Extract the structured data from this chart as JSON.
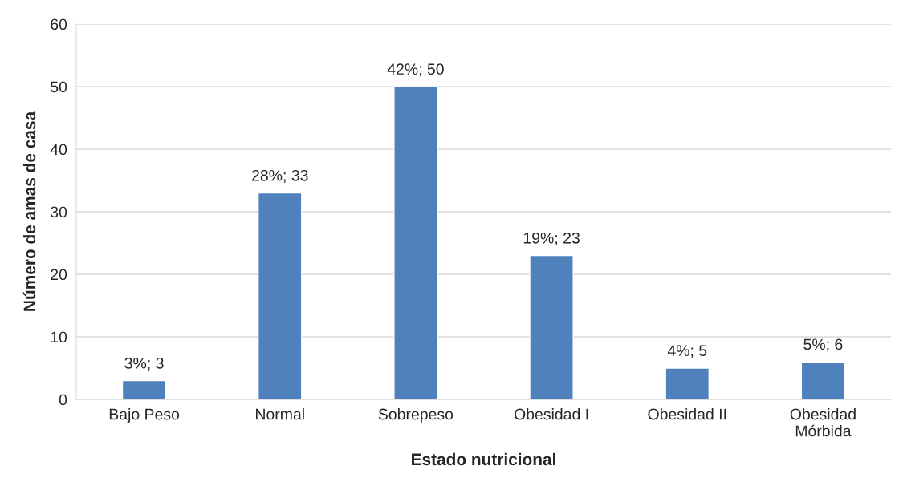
{
  "chart_data": {
    "type": "bar",
    "xlabel": "Estado nutricional",
    "ylabel": "Número de amas de casa",
    "categories": [
      "Bajo Peso",
      "Normal",
      "Sobrepeso",
      "Obesidad I",
      "Obesidad II",
      "Obesidad\nMórbida"
    ],
    "values": [
      3,
      33,
      50,
      23,
      5,
      6
    ],
    "value_labels": [
      "3%; 3",
      "28%; 33",
      "42%; 50",
      "19%; 23",
      "4%; 5",
      "5%; 6"
    ],
    "color": "#4f81bd",
    "ylim": [
      0,
      60
    ],
    "yticks": [
      0,
      10,
      20,
      30,
      40,
      50,
      60
    ],
    "grid": "y",
    "legend": false
  }
}
